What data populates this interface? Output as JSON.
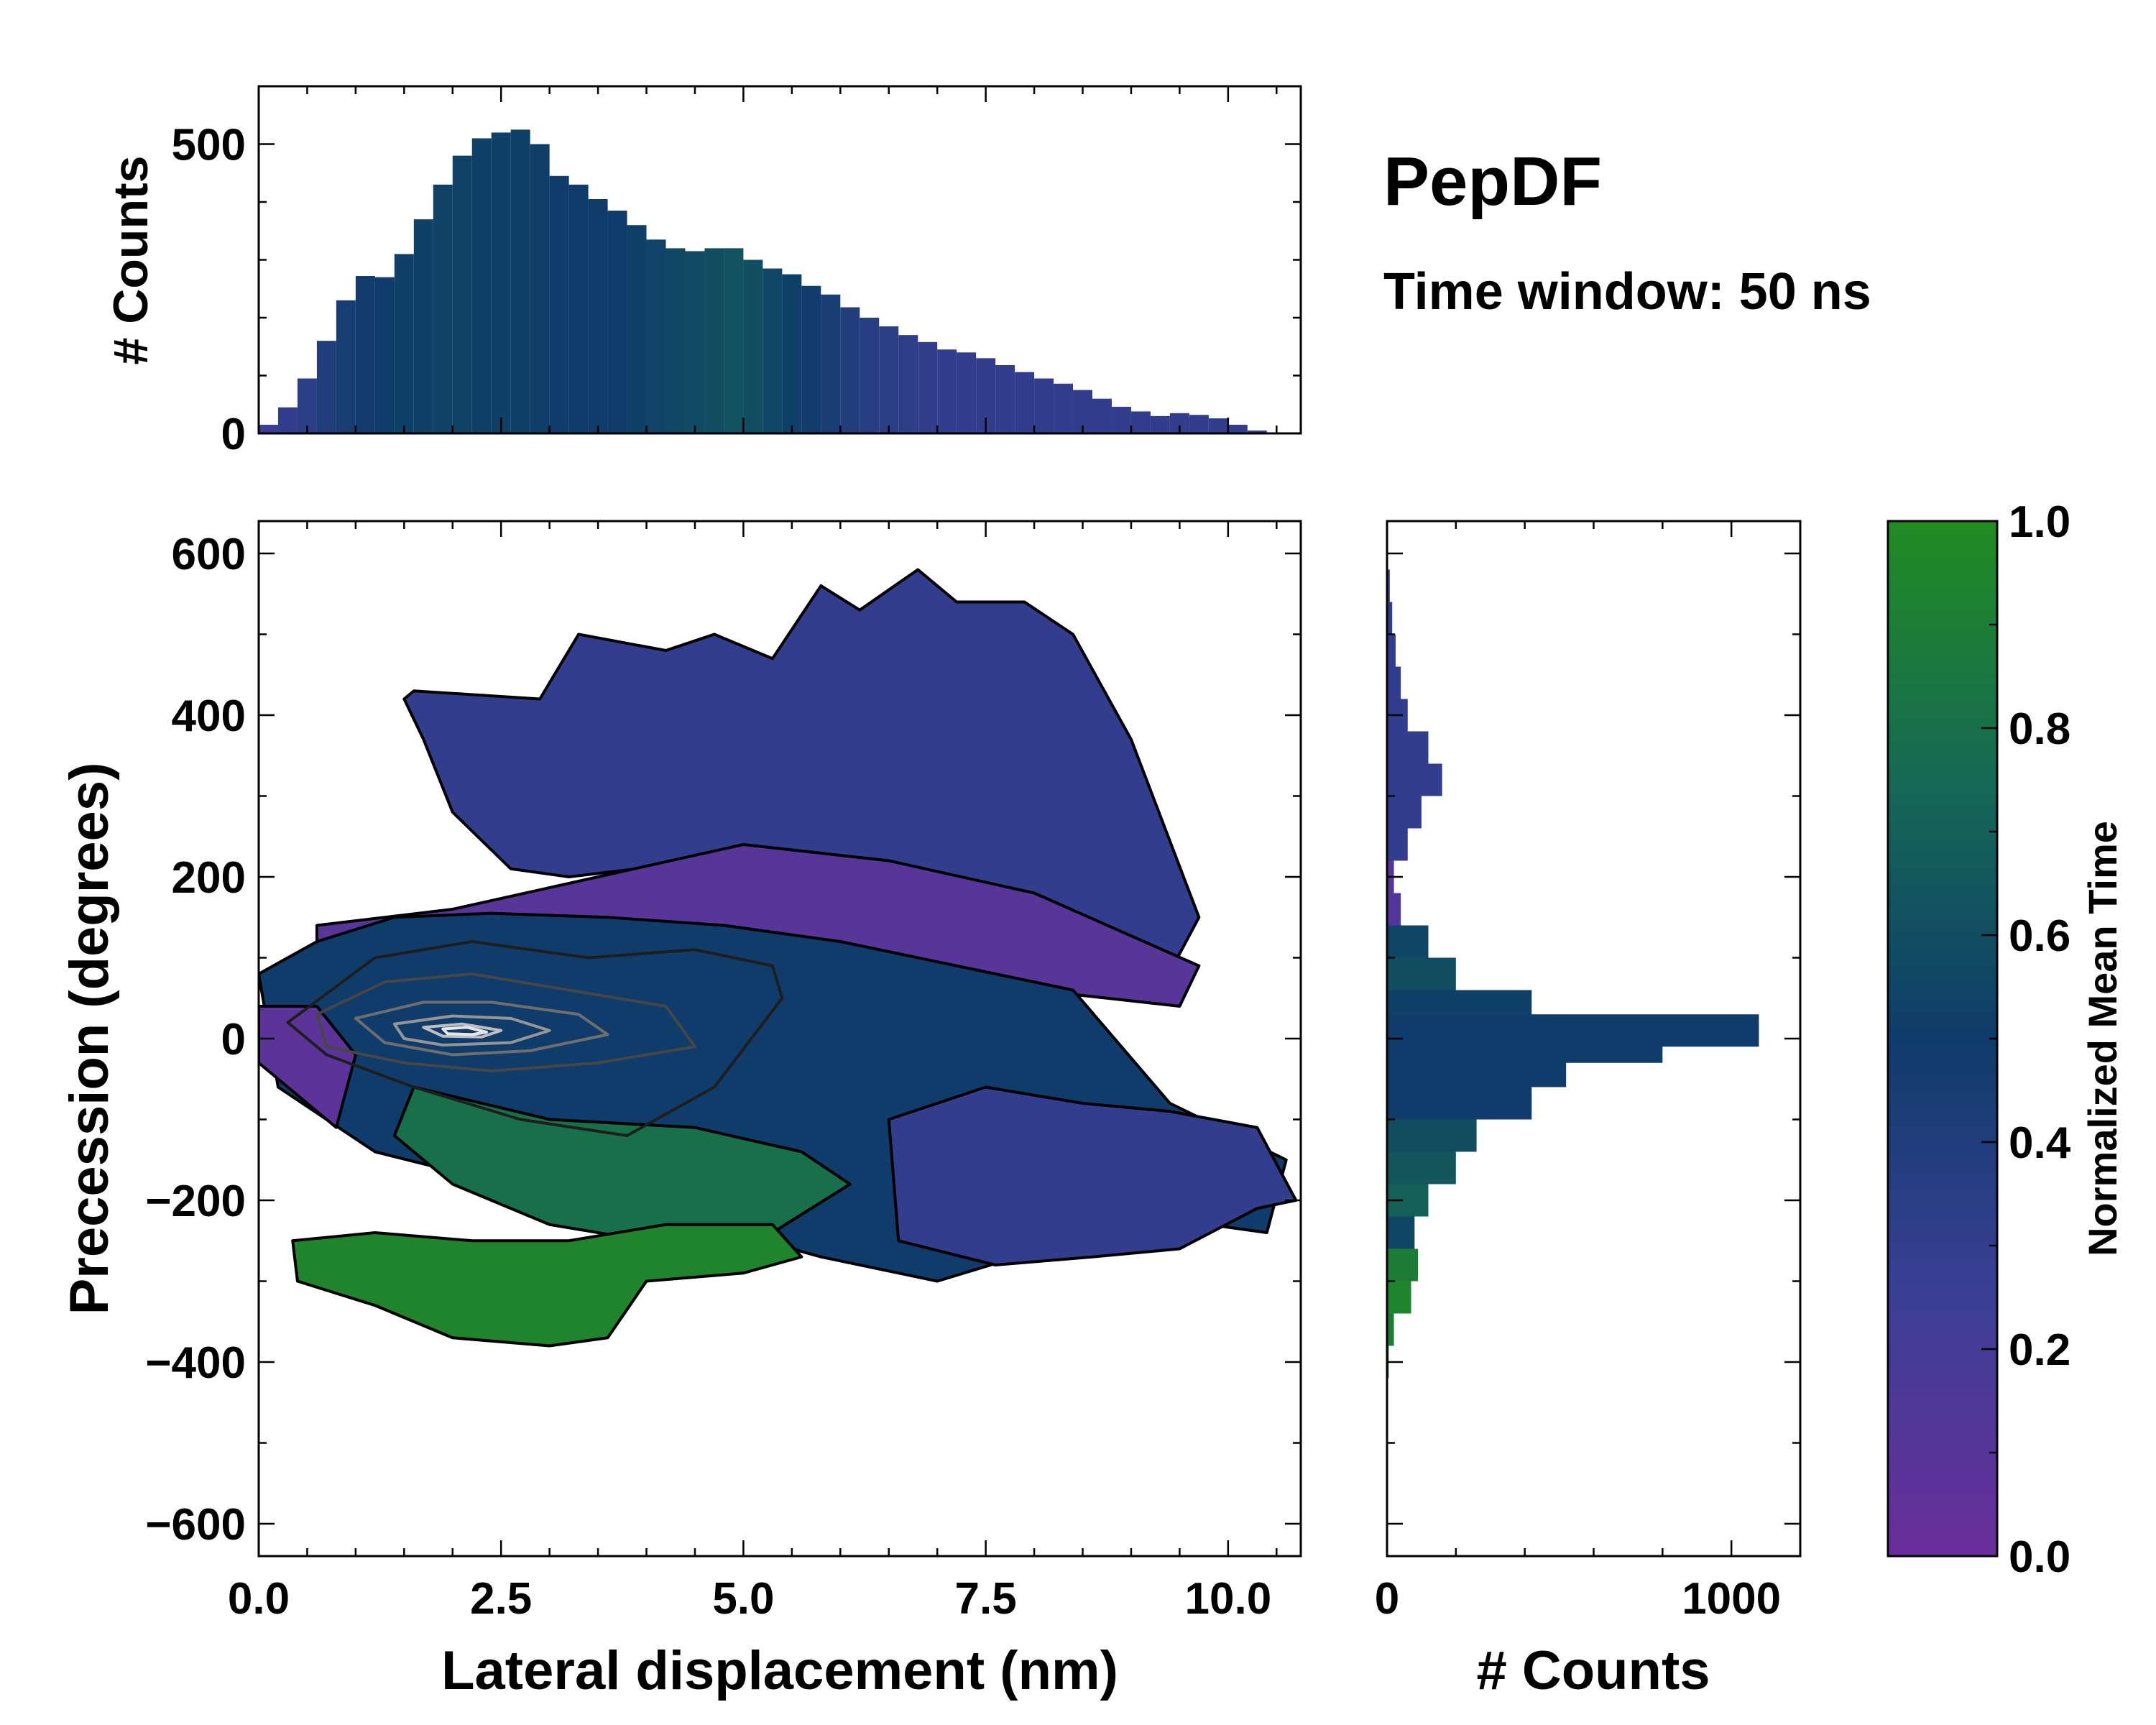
{
  "title": "PepDF",
  "subtitle": "Time window: 50 ns",
  "colors": {
    "low": "#6a2e9b",
    "mid": "#0f3c6a",
    "high": "#238b23"
  },
  "chart_data": [
    {
      "id": "top-hist",
      "type": "bar",
      "title": "",
      "xlabel": "",
      "ylabel": "# Counts",
      "xlim": [
        0,
        10.75
      ],
      "ylim": [
        0,
        600
      ],
      "yticks": [
        0,
        500
      ],
      "x": [
        0.1,
        0.3,
        0.5,
        0.7,
        0.9,
        1.1,
        1.3,
        1.5,
        1.7,
        1.9,
        2.1,
        2.3,
        2.5,
        2.7,
        2.9,
        3.1,
        3.3,
        3.5,
        3.7,
        3.9,
        4.1,
        4.3,
        4.5,
        4.7,
        4.9,
        5.1,
        5.3,
        5.5,
        5.7,
        5.9,
        6.1,
        6.3,
        6.5,
        6.7,
        6.9,
        7.1,
        7.3,
        7.5,
        7.7,
        7.9,
        8.1,
        8.3,
        8.5,
        8.7,
        8.9,
        9.1,
        9.3,
        9.5,
        9.7,
        9.9,
        10.1,
        10.3,
        10.5
      ],
      "values": [
        15,
        45,
        95,
        160,
        230,
        272,
        270,
        310,
        370,
        430,
        480,
        510,
        520,
        525,
        500,
        445,
        430,
        405,
        385,
        360,
        335,
        320,
        315,
        320,
        320,
        300,
        285,
        275,
        255,
        240,
        218,
        200,
        185,
        170,
        158,
        145,
        140,
        130,
        118,
        106,
        95,
        86,
        75,
        60,
        46,
        38,
        30,
        35,
        32,
        26,
        15,
        5,
        1
      ],
      "mean_time": [
        0.26,
        0.3,
        0.34,
        0.4,
        0.45,
        0.48,
        0.5,
        0.52,
        0.52,
        0.53,
        0.53,
        0.52,
        0.52,
        0.52,
        0.51,
        0.5,
        0.5,
        0.5,
        0.5,
        0.52,
        0.54,
        0.56,
        0.58,
        0.6,
        0.62,
        0.6,
        0.56,
        0.52,
        0.48,
        0.44,
        0.4,
        0.36,
        0.34,
        0.32,
        0.31,
        0.3,
        0.3,
        0.3,
        0.3,
        0.3,
        0.3,
        0.3,
        0.3,
        0.3,
        0.3,
        0.3,
        0.3,
        0.3,
        0.3,
        0.3,
        0.3,
        0.3,
        0.3
      ]
    },
    {
      "id": "main-heatmap",
      "type": "heatmap",
      "title": "",
      "xlabel": "Lateral displacement (nm)",
      "ylabel": "Precession (degrees)",
      "xlim": [
        0,
        10.75
      ],
      "ylim": [
        -640,
        640
      ],
      "xticks": [
        0.0,
        2.5,
        5.0,
        7.5,
        10.0
      ],
      "xtick_labels": [
        "0.0",
        "2.5",
        "5.0",
        "7.5",
        "10.0"
      ],
      "yticks": [
        600,
        400,
        200,
        0,
        -200,
        -400,
        -600
      ],
      "ytick_labels": [
        "600",
        "400",
        "200",
        "0",
        "−200",
        "−400",
        "−600"
      ],
      "regions": [
        {
          "name": "upper-blue-cloud",
          "x": [
            1.6,
            2.9,
            3.3,
            4.2,
            4.7,
            5.3,
            5.8,
            6.2,
            6.8,
            7.2,
            7.9,
            8.4,
            9.0,
            9.7,
            9.3,
            8.7,
            8.2,
            7.6,
            7.0,
            6.4,
            5.8,
            5.2,
            4.6,
            3.9,
            3.2,
            2.6,
            2.0,
            1.7,
            1.5
          ],
          "y": [
            430,
            420,
            500,
            480,
            500,
            470,
            560,
            530,
            580,
            540,
            540,
            500,
            370,
            150,
            60,
            90,
            130,
            170,
            190,
            210,
            200,
            220,
            200,
            210,
            200,
            210,
            280,
            370,
            420
          ],
          "value": 0.3
        },
        {
          "name": "purple-band",
          "x": [
            0.6,
            2.0,
            3.5,
            5.0,
            6.5,
            8.0,
            9.7,
            9.5,
            8.0,
            6.5,
            5.0,
            3.5,
            2.0,
            0.6
          ],
          "y": [
            140,
            160,
            200,
            240,
            220,
            180,
            90,
            40,
            60,
            80,
            90,
            80,
            60,
            40
          ],
          "value": 0.1
        },
        {
          "name": "core-mixed-cloud",
          "x": [
            0.0,
            0.6,
            1.4,
            2.4,
            3.6,
            4.8,
            6.0,
            7.2,
            8.4,
            9.4,
            10.6,
            10.4,
            9.2,
            8.1,
            7.0,
            5.8,
            4.6,
            3.4,
            2.2,
            1.2,
            0.2
          ],
          "y": [
            80,
            120,
            150,
            155,
            150,
            140,
            120,
            90,
            60,
            -80,
            -150,
            -240,
            -220,
            -260,
            -300,
            -270,
            -230,
            -210,
            -170,
            -140,
            -60
          ],
          "value": 0.5
        },
        {
          "name": "right-lobe",
          "x": [
            6.5,
            7.5,
            8.5,
            9.4,
            10.3,
            10.7,
            10.3,
            9.5,
            8.6,
            7.6,
            6.6
          ],
          "y": [
            -100,
            -60,
            -80,
            -90,
            -110,
            -200,
            -210,
            -260,
            -270,
            -280,
            -250
          ],
          "value": 0.3
        },
        {
          "name": "green-lower-band",
          "x": [
            1.6,
            3.0,
            4.5,
            5.6,
            6.1,
            5.3,
            4.0,
            3.0,
            2.0,
            1.4
          ],
          "y": [
            -60,
            -100,
            -110,
            -140,
            -180,
            -240,
            -250,
            -230,
            -180,
            -120
          ],
          "value": 0.8
        },
        {
          "name": "green-bottom-blob",
          "x": [
            0.35,
            1.2,
            2.2,
            3.2,
            4.2,
            5.3,
            5.6,
            5.0,
            4.0,
            3.6,
            3.0,
            2.0,
            1.2,
            0.4
          ],
          "y": [
            -250,
            -240,
            -250,
            -250,
            -230,
            -230,
            -270,
            -290,
            -300,
            -370,
            -380,
            -370,
            -330,
            -300
          ],
          "value": 0.95
        },
        {
          "name": "left-purple-edge",
          "x": [
            0.0,
            0.6,
            1.0,
            0.8,
            0.3,
            0.0
          ],
          "y": [
            40,
            40,
            -20,
            -110,
            -60,
            -30
          ],
          "value": 0.08
        }
      ],
      "contours": [
        {
          "level": 1,
          "x": [
            0.3,
            1.2,
            2.2,
            3.4,
            4.5,
            5.3,
            5.4,
            4.7,
            3.8,
            2.7,
            1.6,
            0.7,
            0.3
          ],
          "y": [
            20,
            100,
            120,
            100,
            110,
            90,
            50,
            -60,
            -120,
            -100,
            -60,
            -20,
            20
          ]
        },
        {
          "level": 2,
          "x": [
            0.6,
            1.3,
            2.2,
            3.2,
            4.2,
            4.5,
            3.5,
            2.4,
            1.5,
            0.7,
            0.6
          ],
          "y": [
            30,
            70,
            80,
            60,
            40,
            -10,
            -30,
            -40,
            -30,
            -10,
            30
          ]
        },
        {
          "level": 3,
          "x": [
            1.0,
            1.7,
            2.4,
            3.3,
            3.6,
            2.8,
            2.0,
            1.3,
            1.0
          ],
          "y": [
            25,
            45,
            45,
            30,
            5,
            -15,
            -20,
            -5,
            25
          ]
        },
        {
          "level": 4,
          "x": [
            1.4,
            2.0,
            2.6,
            3.0,
            2.6,
            1.9,
            1.5,
            1.4
          ],
          "y": [
            18,
            28,
            25,
            10,
            -5,
            -8,
            0,
            18
          ]
        },
        {
          "level": 5,
          "x": [
            1.7,
            2.1,
            2.5,
            2.3,
            1.9,
            1.7
          ],
          "y": [
            14,
            18,
            10,
            2,
            3,
            14
          ]
        },
        {
          "level": 6,
          "x": [
            1.9,
            2.15,
            2.35,
            2.2,
            1.95,
            1.9
          ],
          "y": [
            12,
            14,
            8,
            5,
            6,
            12
          ]
        }
      ]
    },
    {
      "id": "right-hist",
      "type": "bar",
      "orientation": "horizontal",
      "title": "",
      "xlabel": "# Counts",
      "ylabel": "",
      "xlim": [
        0,
        1200
      ],
      "ylim": [
        -640,
        640
      ],
      "xticks": [
        0,
        1000
      ],
      "y": [
        560,
        520,
        480,
        440,
        400,
        360,
        320,
        280,
        240,
        200,
        160,
        120,
        80,
        40,
        10,
        -10,
        -40,
        -80,
        -120,
        -160,
        -200,
        -240,
        -280,
        -320,
        -360,
        -400
      ],
      "values": [
        8,
        15,
        25,
        40,
        60,
        120,
        160,
        100,
        60,
        20,
        40,
        120,
        200,
        420,
        1080,
        800,
        520,
        420,
        260,
        200,
        120,
        80,
        90,
        70,
        20,
        5
      ],
      "mean_time": [
        0.3,
        0.3,
        0.3,
        0.3,
        0.3,
        0.3,
        0.3,
        0.3,
        0.3,
        0.1,
        0.12,
        0.55,
        0.6,
        0.52,
        0.5,
        0.5,
        0.5,
        0.5,
        0.6,
        0.65,
        0.7,
        0.55,
        0.9,
        0.95,
        0.9,
        0.9
      ]
    },
    {
      "id": "colorbar",
      "type": "heatmap",
      "title": "",
      "label": "Normalized Mean Time",
      "range": [
        0.0,
        1.0
      ],
      "ticks": [
        0.0,
        0.2,
        0.4,
        0.6,
        0.8,
        1.0
      ],
      "tick_labels": [
        "0.0",
        "0.2",
        "0.4",
        "0.6",
        "0.8",
        "1.0"
      ]
    }
  ]
}
